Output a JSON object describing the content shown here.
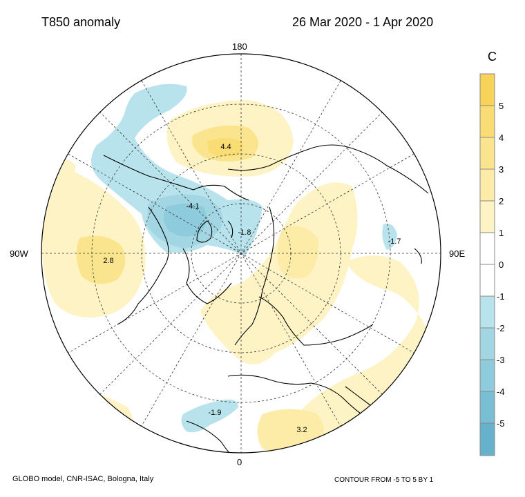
{
  "header": {
    "title": "T850 anomaly",
    "date_range": "26 Mar 2020 - 1 Apr 2020"
  },
  "map": {
    "projection": "north-polar-stereographic",
    "meridian_labels": {
      "top": "180",
      "bottom": "0",
      "left": "90W",
      "right": "90E"
    },
    "field_labels": [
      {
        "value": "4.4",
        "sign": "positive"
      },
      {
        "value": "-4.1",
        "sign": "negative"
      },
      {
        "value": "-1.8",
        "sign": "negative"
      },
      {
        "value": "-1.7",
        "sign": "negative"
      },
      {
        "value": "2.8",
        "sign": "positive"
      },
      {
        "value": "-1.9",
        "sign": "negative"
      },
      {
        "value": "3.2",
        "sign": "positive"
      }
    ]
  },
  "colorbar": {
    "unit": "C",
    "ticks": [
      "5",
      "4",
      "3",
      "2",
      "1",
      "0",
      "-1",
      "-2",
      "-3",
      "-4",
      "-5"
    ],
    "bands": [
      {
        "range": "5 to 6",
        "color": "#f8d35a"
      },
      {
        "range": "4 to 5",
        "color": "#fadc74"
      },
      {
        "range": "3 to 4",
        "color": "#fbe48e"
      },
      {
        "range": "2 to 3",
        "color": "#fdeca8"
      },
      {
        "range": "1 to 2",
        "color": "#fef3c4"
      },
      {
        "range": "0 to 1",
        "color": "#ffffff"
      },
      {
        "range": "-1 to 0",
        "color": "#ffffff"
      },
      {
        "range": "-2 to -1",
        "color": "#b8e3ec"
      },
      {
        "range": "-3 to -2",
        "color": "#a3d6e3"
      },
      {
        "range": "-4 to -3",
        "color": "#8ecbdc"
      },
      {
        "range": "-5 to -4",
        "color": "#79bfd4"
      },
      {
        "range": "-6 to -5",
        "color": "#66b2cd"
      }
    ]
  },
  "footer": {
    "credit": "GLOBO model, CNR-ISAC, Bologna, Italy",
    "contour_note": "CONTOUR FROM -5 TO 5 BY 1"
  }
}
